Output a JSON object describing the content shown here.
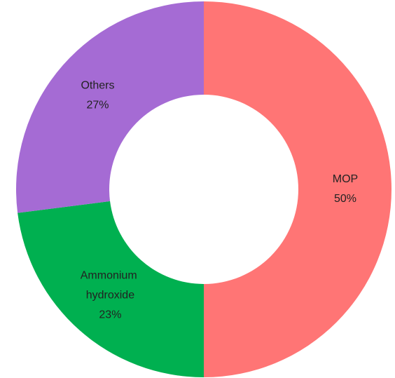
{
  "chart_data": {
    "type": "donut",
    "categories": [
      "MOP",
      "Ammonium hydroxide",
      "Others"
    ],
    "values": [
      50,
      23,
      27
    ],
    "value_labels": [
      "50%",
      "23%",
      "27%"
    ],
    "colors": [
      "#ff7575",
      "#00b050",
      "#a56bd4"
    ]
  }
}
